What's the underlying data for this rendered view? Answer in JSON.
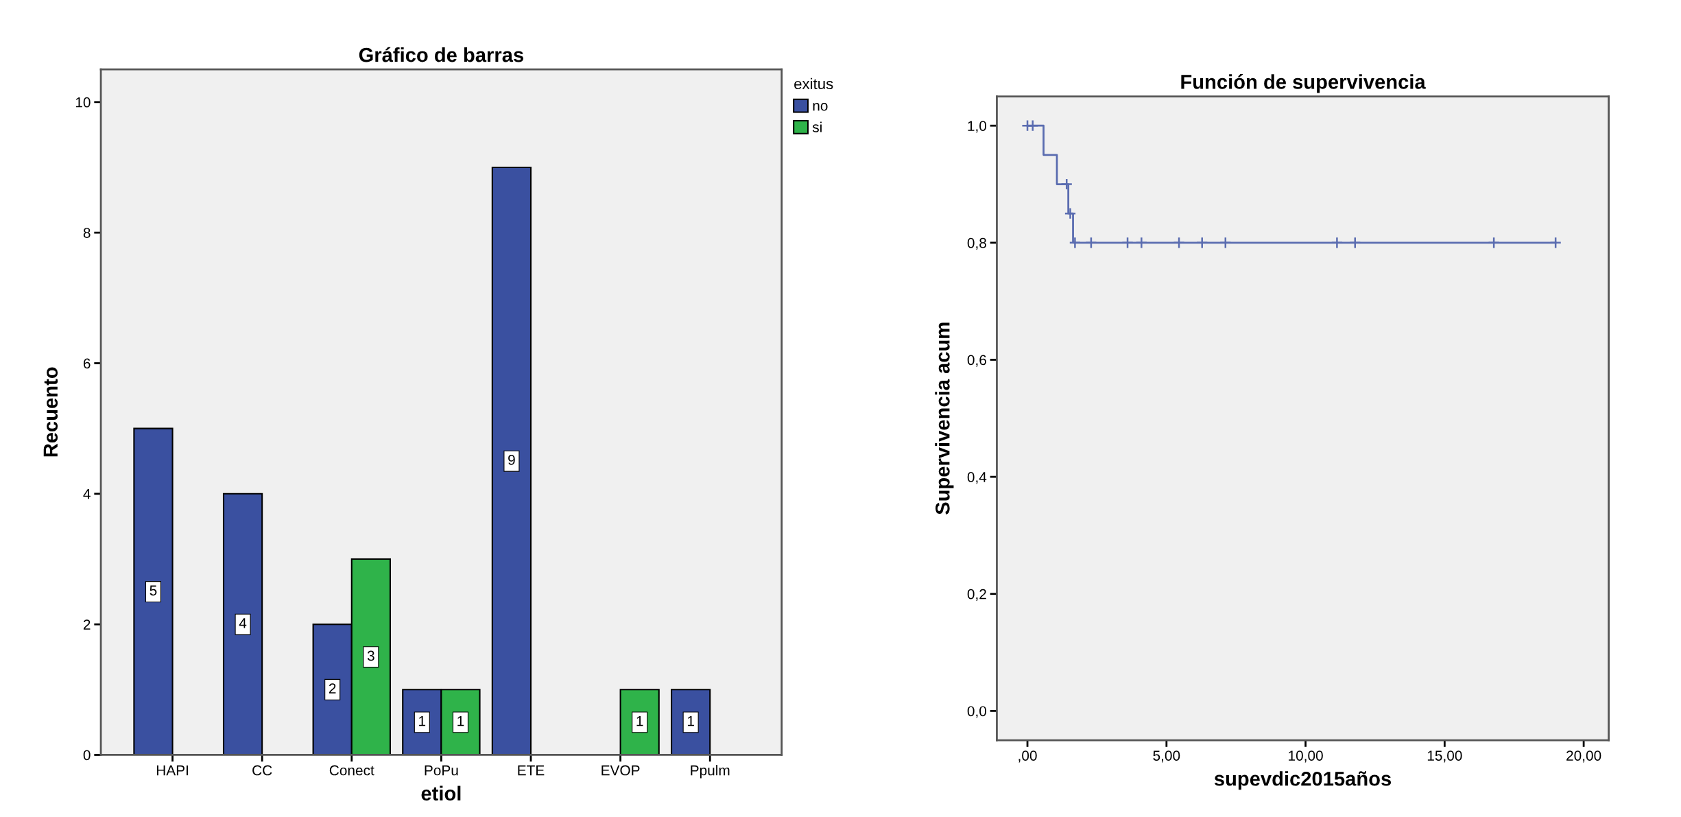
{
  "chart_data": [
    {
      "type": "bar",
      "title": "Gráfico de barras",
      "xlabel": "etiol",
      "ylabel": "Recuento",
      "legend_title": "exitus",
      "categories": [
        "HAPI",
        "CC",
        "Conect",
        "PoPu",
        "ETE",
        "EVOP",
        "Ppulm"
      ],
      "series": [
        {
          "name": "no",
          "color": "#3a50a0",
          "values": [
            5,
            4,
            2,
            1,
            9,
            null,
            1
          ]
        },
        {
          "name": "si",
          "color": "#2fb34a",
          "values": [
            null,
            null,
            3,
            1,
            null,
            1,
            null
          ]
        }
      ],
      "ylim": [
        0,
        10.5
      ],
      "yticks": [
        0,
        2,
        4,
        6,
        8,
        10
      ],
      "data_labels": true,
      "legend": "top right",
      "grid": false
    },
    {
      "type": "step",
      "title": "Función de supervivencia",
      "xlabel": "supevdic2015años",
      "ylabel": "Supervivencia acum",
      "series": [
        {
          "type": "step",
          "color": "#5a6cb0",
          "x": [
            0,
            0.58,
            1.06,
            1.47,
            1.64,
            18.99
          ],
          "values": [
            1.0,
            0.95,
            0.9,
            0.85,
            0.8,
            0.8
          ]
        },
        {
          "type": "scatter",
          "color": "#5a6cb0",
          "marker": "cross",
          "x": [
            0,
            0.19,
            1.41,
            1.54,
            1.71,
            2.29,
            3.6,
            4.1,
            5.45,
            6.28,
            7.12,
            11.13,
            11.78,
            16.77,
            18.99
          ],
          "values": [
            1.0,
            1.0,
            0.9,
            0.85,
            0.8,
            0.8,
            0.8,
            0.8,
            0.8,
            0.8,
            0.8,
            0.8,
            0.8,
            0.8,
            0.8
          ]
        }
      ],
      "xlim": [
        -1.1,
        20.9
      ],
      "xticks": [
        {
          "value": 0,
          "label": ",00"
        },
        {
          "value": 5,
          "label": "5,00"
        },
        {
          "value": 10,
          "label": "10,00"
        },
        {
          "value": 15,
          "label": "15,00"
        },
        {
          "value": 20,
          "label": "20,00"
        }
      ],
      "ylim": [
        -0.05,
        1.05
      ],
      "yticks": [
        {
          "value": 0,
          "label": "0,0"
        },
        {
          "value": 0.2,
          "label": "0,2"
        },
        {
          "value": 0.4,
          "label": "0,4"
        },
        {
          "value": 0.6,
          "label": "0,6"
        },
        {
          "value": 0.8,
          "label": "0,8"
        },
        {
          "value": 1.0,
          "label": "1,0"
        }
      ],
      "grid": false
    }
  ]
}
